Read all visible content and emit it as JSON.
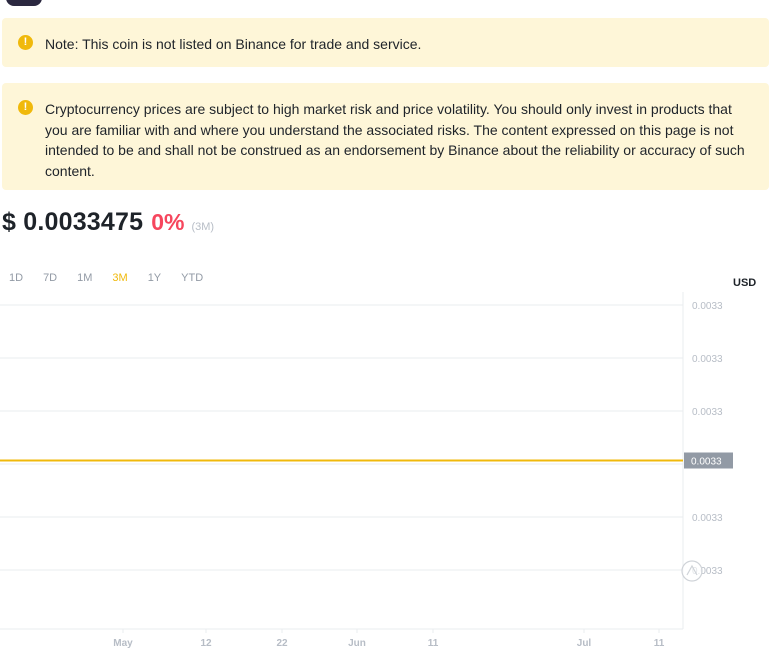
{
  "notes": [
    {
      "text": "Note: This coin is not listed on Binance for trade and service."
    },
    {
      "text": "Cryptocurrency prices are subject to high market risk and price volatility. You should only invest in products that you are familiar with and where you understand the associated risks. The content expressed on this page is not intended to be and shall not be construed as an endorsement by Binance about the reliability or accuracy of such content."
    }
  ],
  "price": {
    "value": "$ 0.0033475",
    "change": "0%",
    "period": "(3M)"
  },
  "range_tabs": [
    {
      "label": "1D",
      "active": false
    },
    {
      "label": "7D",
      "active": false
    },
    {
      "label": "1M",
      "active": false
    },
    {
      "label": "3M",
      "active": true
    },
    {
      "label": "1Y",
      "active": false
    },
    {
      "label": "YTD",
      "active": false
    }
  ],
  "currency": "USD",
  "colors": {
    "line": "#f0b90b",
    "grid": "#eaecef",
    "axis_text": "#b7bdc6",
    "price_tag": "#929aa5",
    "change_negative": "#f6465d",
    "note_bg": "#fef6d8"
  },
  "chart_data": {
    "type": "line",
    "x_ticks": [
      "May",
      "12",
      "22",
      "Jun",
      "11",
      "Jul",
      "11"
    ],
    "y_ticks": [
      "0.0033",
      "0.0033",
      "0.0033",
      "0.0033",
      "0.0033",
      "0.0033"
    ],
    "current_label": "0.0033",
    "series": [
      {
        "values": [
          0.0033475,
          0.0033475,
          0.0033475,
          0.0033475,
          0.0033475,
          0.0033475,
          0.0033475,
          0.0033475
        ]
      }
    ],
    "ylim": [
      0.00334,
      0.003355
    ],
    "grid": true
  }
}
